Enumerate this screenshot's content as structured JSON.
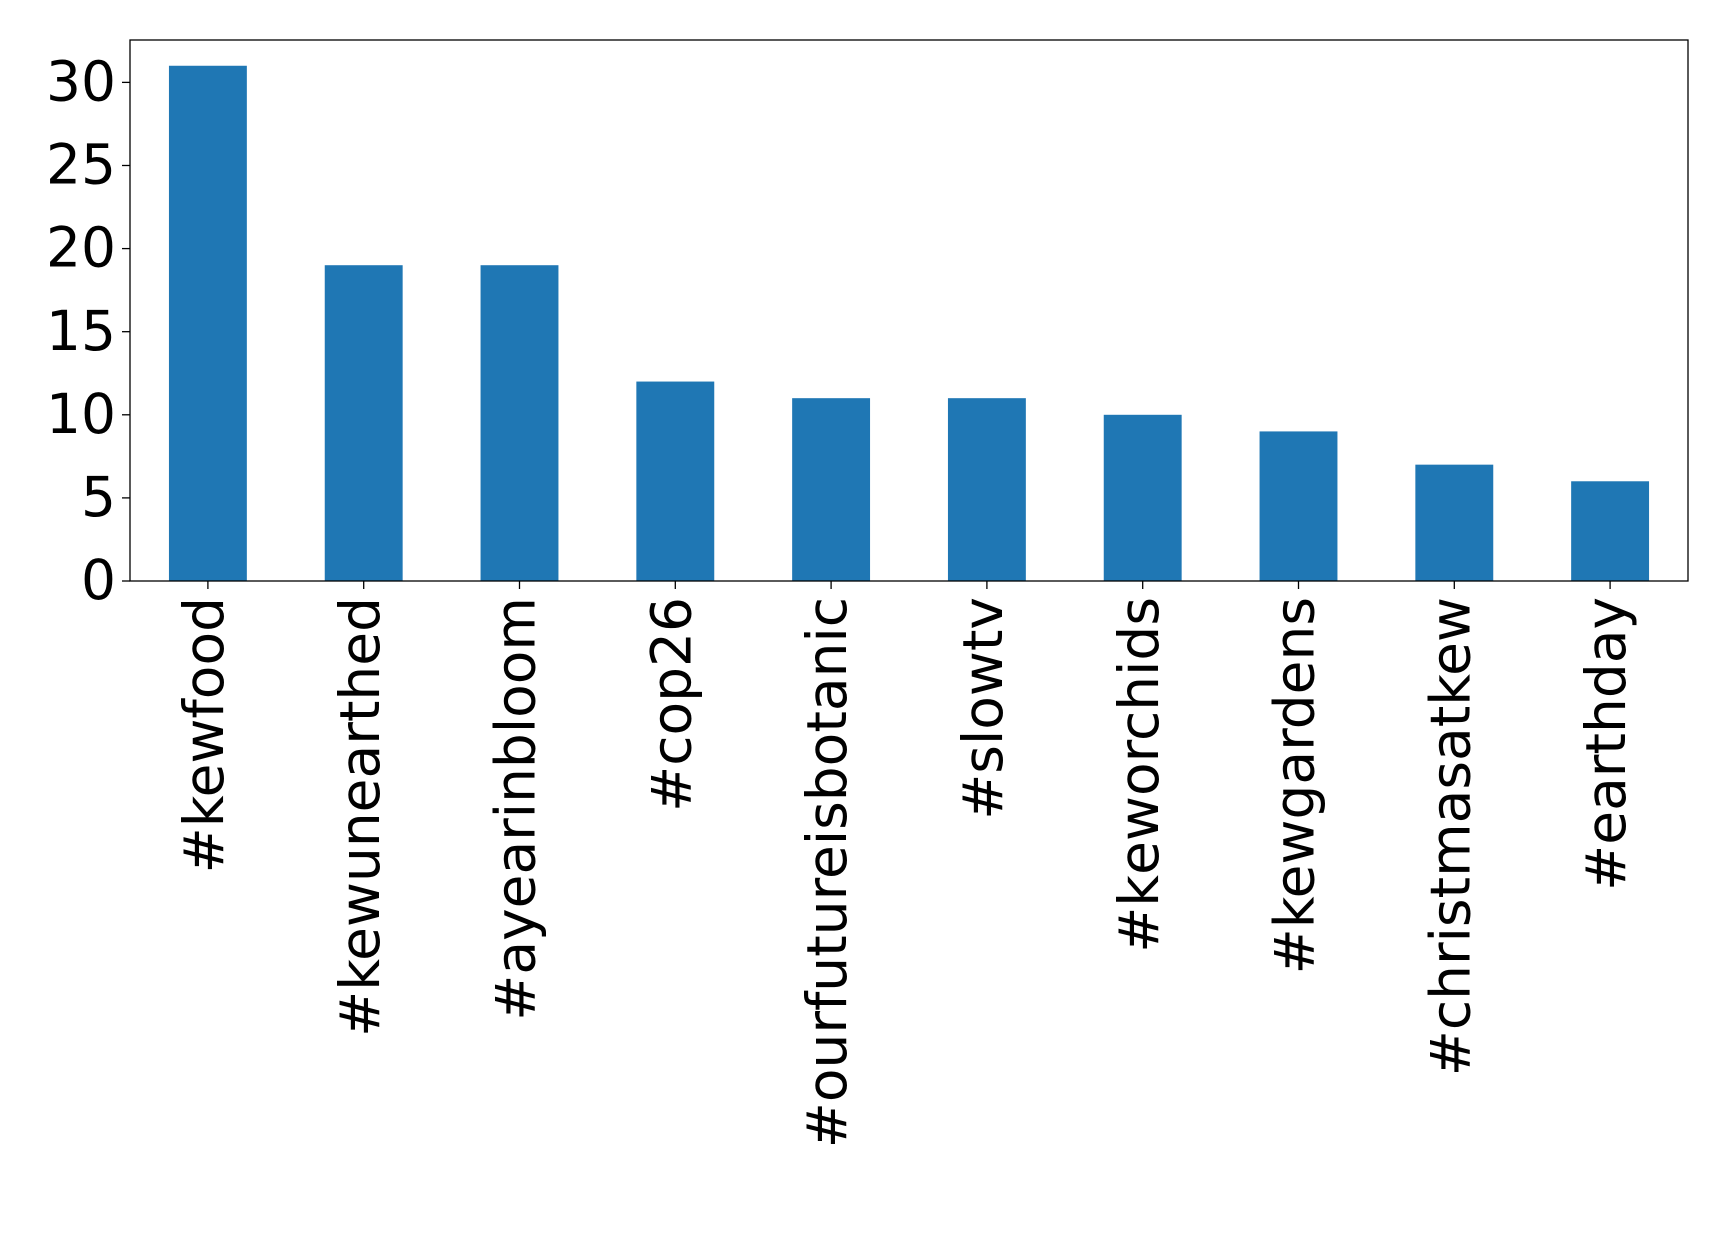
{
  "chart_data": {
    "type": "bar",
    "categories": [
      "#kewfood",
      "#kewunearthed",
      "#ayearinbloom",
      "#cop26",
      "#ourfutureisbotanic",
      "#slowtv",
      "#kеworchids",
      "#kewgardens",
      "#christmasatkew",
      "#earthday"
    ],
    "values": [
      31,
      19,
      19,
      12,
      11,
      11,
      10,
      9,
      7,
      6
    ],
    "color": "#1f77b4",
    "ylim": [
      0,
      32.55
    ],
    "yticks": [
      0,
      5,
      10,
      15,
      20,
      25,
      30
    ],
    "grid": false
  }
}
